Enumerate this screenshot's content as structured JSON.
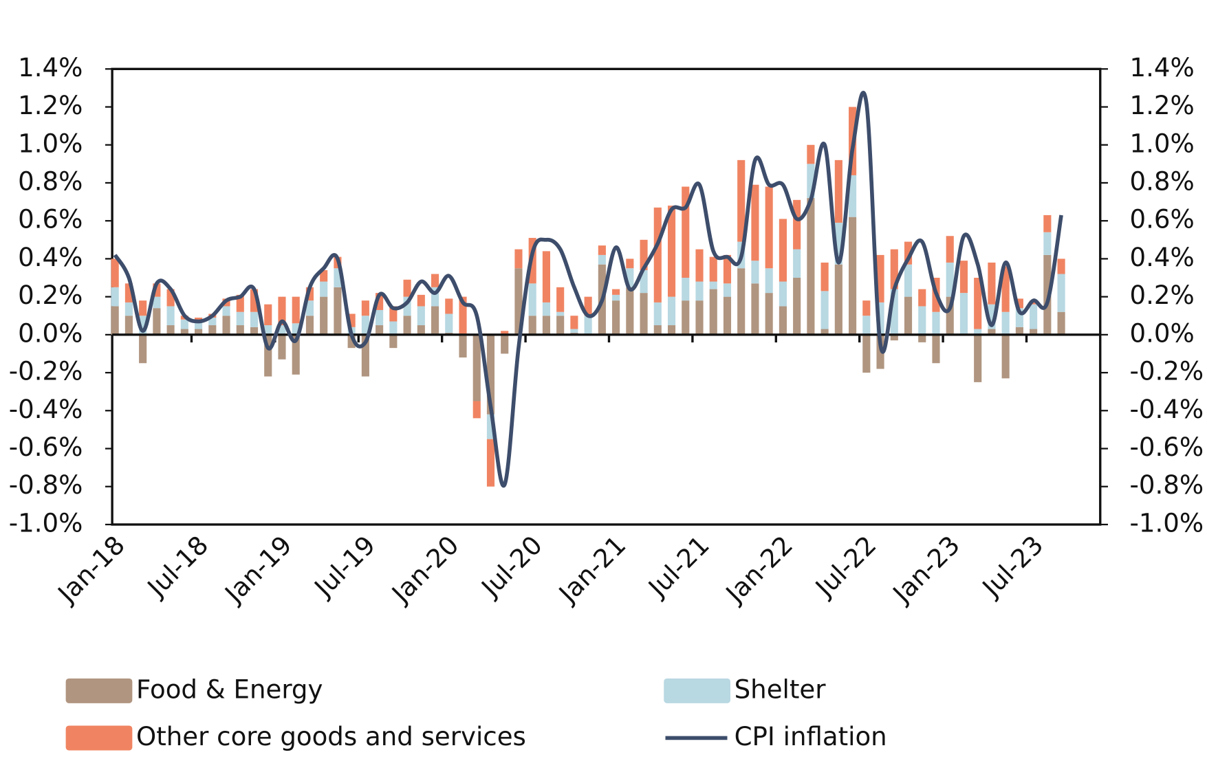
{
  "chart_data": {
    "type": "stacked-bar-line",
    "categories": [
      "Jan-18",
      null,
      null,
      null,
      null,
      null,
      "Jul-18",
      null,
      null,
      null,
      null,
      null,
      "Jan-19",
      null,
      null,
      null,
      null,
      null,
      "Jul-19",
      null,
      null,
      null,
      null,
      null,
      "Jan-20",
      null,
      null,
      null,
      null,
      null,
      "Jul-20",
      null,
      null,
      null,
      null,
      null,
      "Jan-21",
      null,
      null,
      null,
      null,
      null,
      "Jul-21",
      null,
      null,
      null,
      null,
      null,
      "Jan-22",
      null,
      null,
      null,
      null,
      null,
      "Jul-22",
      null,
      null,
      null,
      null,
      null,
      "Jan-23",
      null,
      null,
      null,
      null,
      null,
      "Jul-23",
      null,
      null
    ],
    "series": [
      {
        "name": "Food & Energy",
        "color": "#b09580",
        "kind": "bar",
        "values": [
          0.15,
          0.1,
          -0.15,
          0.14,
          0.05,
          0.03,
          0.03,
          0.05,
          0.1,
          0.05,
          0.04,
          -0.22,
          -0.13,
          -0.21,
          0.1,
          0.2,
          0.25,
          -0.07,
          -0.22,
          0.05,
          -0.07,
          0.1,
          0.05,
          0.15,
          0.01,
          -0.12,
          -0.35,
          -0.42,
          -0.1,
          0.35,
          0.1,
          0.1,
          0.1,
          0.01,
          0.0,
          0.37,
          0.18,
          0.25,
          0.22,
          0.05,
          0.05,
          0.18,
          0.18,
          0.24,
          0.2,
          0.35,
          0.27,
          0.22,
          0.15,
          0.3,
          0.72,
          0.03,
          0.37,
          0.62,
          -0.2,
          -0.18,
          -0.03,
          0.2,
          -0.04,
          -0.15,
          0.2,
          0.0,
          -0.25,
          0.03,
          -0.23,
          0.04,
          0.03,
          0.42,
          0.12
        ]
      },
      {
        "name": "Shelter",
        "color": "#b8d8e2",
        "kind": "bar",
        "values": [
          0.1,
          0.07,
          0.1,
          0.06,
          0.1,
          0.05,
          0.04,
          0.04,
          0.05,
          0.07,
          0.08,
          0.05,
          0.05,
          0.06,
          0.08,
          0.08,
          0.1,
          0.04,
          0.1,
          0.08,
          0.07,
          0.1,
          0.1,
          0.1,
          0.1,
          0.0,
          0.0,
          -0.13,
          0.0,
          0.0,
          0.17,
          0.07,
          0.02,
          0.02,
          0.1,
          0.05,
          0.03,
          0.1,
          0.12,
          0.12,
          0.15,
          0.12,
          0.1,
          0.04,
          0.07,
          0.14,
          0.12,
          0.13,
          0.13,
          0.15,
          0.18,
          0.2,
          0.22,
          0.22,
          0.1,
          0.17,
          0.24,
          0.17,
          0.15,
          0.12,
          0.18,
          0.22,
          0.03,
          0.13,
          0.12,
          0.1,
          0.13,
          0.12,
          0.2
        ]
      },
      {
        "name": "Other core goods and services",
        "color": "#f08462",
        "kind": "bar",
        "values": [
          0.15,
          0.1,
          0.08,
          0.07,
          0.09,
          0.02,
          0.02,
          0.02,
          0.04,
          0.09,
          0.12,
          0.11,
          0.15,
          0.14,
          0.07,
          0.06,
          0.06,
          0.07,
          0.08,
          0.09,
          0.08,
          0.09,
          0.06,
          0.07,
          0.08,
          0.2,
          -0.09,
          -0.25,
          0.02,
          0.1,
          0.24,
          0.27,
          0.13,
          0.07,
          0.1,
          0.05,
          0.03,
          0.05,
          0.16,
          0.5,
          0.48,
          0.48,
          0.17,
          0.13,
          0.15,
          0.43,
          0.4,
          0.43,
          0.33,
          0.26,
          0.1,
          0.15,
          0.33,
          0.36,
          0.08,
          0.25,
          0.21,
          0.12,
          0.09,
          0.18,
          0.14,
          0.17,
          0.27,
          0.22,
          0.24,
          0.05,
          0.02,
          0.09,
          0.08
        ]
      },
      {
        "name": "CPI inflation",
        "color": "#3d4d6b",
        "kind": "line",
        "values": [
          0.42,
          0.3,
          0.02,
          0.27,
          0.24,
          0.1,
          0.07,
          0.1,
          0.18,
          0.2,
          0.24,
          -0.07,
          0.07,
          -0.03,
          0.25,
          0.35,
          0.4,
          0.0,
          -0.04,
          0.21,
          0.14,
          0.17,
          0.28,
          0.22,
          0.31,
          0.17,
          0.1,
          -0.38,
          -0.79,
          -0.07,
          0.43,
          0.5,
          0.45,
          0.25,
          0.1,
          0.18,
          0.46,
          0.24,
          0.35,
          0.48,
          0.66,
          0.67,
          0.79,
          0.44,
          0.41,
          0.41,
          0.92,
          0.79,
          0.79,
          0.61,
          0.71,
          1.0,
          0.38,
          0.98,
          1.22,
          -0.05,
          0.24,
          0.4,
          0.49,
          0.22,
          0.14,
          0.52,
          0.37,
          0.05,
          0.38,
          0.12,
          0.18,
          0.17,
          0.63
        ]
      }
    ],
    "ylim": [
      -1.0,
      1.4
    ],
    "yticks": [
      {
        "value": -1.0,
        "label": "-1.0%"
      },
      {
        "value": -0.8,
        "label": "-0.8%"
      },
      {
        "value": -0.6,
        "label": "-0.6%"
      },
      {
        "value": -0.4,
        "label": "-0.4%"
      },
      {
        "value": -0.2,
        "label": "-0.2%"
      },
      {
        "value": 0,
        "label": "0.0%"
      },
      {
        "value": 0.2,
        "label": "0.2%"
      },
      {
        "value": 0.4,
        "label": "0.4%"
      },
      {
        "value": 0.6,
        "label": "0.6%"
      },
      {
        "value": 0.8,
        "label": "0.8%"
      },
      {
        "value": 1.0,
        "label": "1.0%"
      },
      {
        "value": 1.2,
        "label": "1.2%"
      },
      {
        "value": 1.4,
        "label": "1.4%"
      }
    ],
    "y2lim": [
      -1.0,
      1.4
    ],
    "y2ticks": [
      {
        "value": -1.0,
        "label": "-1.0%"
      },
      {
        "value": -0.8,
        "label": "-0.8%"
      },
      {
        "value": -0.6,
        "label": "-0.6%"
      },
      {
        "value": -0.4,
        "label": "-0.4%"
      },
      {
        "value": -0.2,
        "label": "-0.2%"
      },
      {
        "value": 0,
        "label": "0.0%"
      },
      {
        "value": 0.2,
        "label": "0.2%"
      },
      {
        "value": 0.4,
        "label": "0.4%"
      },
      {
        "value": 0.6,
        "label": "0.6%"
      },
      {
        "value": 0.8,
        "label": "0.8%"
      },
      {
        "value": 1.0,
        "label": "1.0%"
      },
      {
        "value": 1.2,
        "label": "1.2%"
      },
      {
        "value": 1.4,
        "label": "1.4%"
      }
    ],
    "grid": false,
    "legend": "bottom"
  }
}
